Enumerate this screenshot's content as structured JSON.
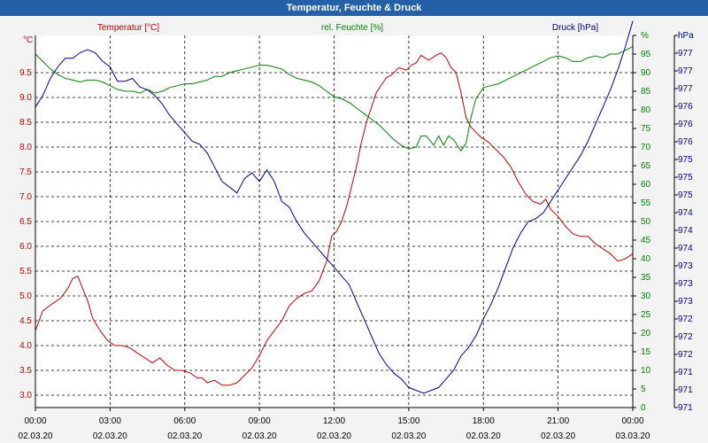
{
  "window": {
    "title": "Temperatur, Feuchte & Druck"
  },
  "chart_data": {
    "type": "line",
    "title": "Temperatur, Feuchte & Druck",
    "x": {
      "ticks": [
        "00:00",
        "03:00",
        "06:00",
        "09:00",
        "12:00",
        "15:00",
        "18:00",
        "21:00",
        "00:00"
      ],
      "dates": [
        "02.03.20",
        "02.03.20",
        "02.03.20",
        "02.03.20",
        "02.03.20",
        "02.03.20",
        "02.03.20",
        "02.03.20",
        "03.03.20"
      ],
      "range_hours": [
        0,
        24
      ]
    },
    "axes": {
      "temperature": {
        "label": "Temperatur [°C]",
        "unit": "°C",
        "range": [
          2.75,
          10.25
        ],
        "ticks": [
          "3.0",
          "3.5",
          "4.0",
          "4.5",
          "5.0",
          "5.5",
          "6.0",
          "6.5",
          "7.0",
          "7.5",
          "8.0",
          "8.5",
          "9.0",
          "9.5"
        ]
      },
      "humidity": {
        "label": "rel. Feuchte [%]",
        "unit": "%",
        "range": [
          0,
          100
        ],
        "ticks": [
          "0",
          "5",
          "10",
          "15",
          "20",
          "25",
          "30",
          "35",
          "40",
          "45",
          "50",
          "55",
          "60",
          "65",
          "70",
          "75",
          "80",
          "85",
          "90",
          "95",
          "%"
        ]
      },
      "pressure": {
        "label": "Druck [hPa]",
        "unit": "hPa",
        "range": [
          971,
          977.5
        ],
        "ticks": [
          "971",
          "971",
          "971",
          "972",
          "972",
          "972",
          "973",
          "973",
          "973",
          "974",
          "974",
          "974",
          "975",
          "975",
          "975",
          "976",
          "976",
          "976",
          "977",
          "977",
          "977",
          "hPa"
        ]
      }
    },
    "series": [
      {
        "name": "Temperatur",
        "color": "#c00000",
        "points": [
          [
            0,
            4.3
          ],
          [
            0.3,
            4.7
          ],
          [
            0.7,
            4.85
          ],
          [
            1.0,
            4.95
          ],
          [
            1.3,
            5.15
          ],
          [
            1.5,
            5.35
          ],
          [
            1.7,
            5.4
          ],
          [
            1.9,
            5.15
          ],
          [
            2.1,
            4.9
          ],
          [
            2.3,
            4.55
          ],
          [
            2.6,
            4.3
          ],
          [
            2.9,
            4.1
          ],
          [
            3.2,
            4.0
          ],
          [
            3.5,
            4.0
          ],
          [
            3.8,
            3.95
          ],
          [
            4.1,
            3.85
          ],
          [
            4.4,
            3.75
          ],
          [
            4.7,
            3.65
          ],
          [
            5.0,
            3.75
          ],
          [
            5.3,
            3.6
          ],
          [
            5.6,
            3.5
          ],
          [
            5.9,
            3.5
          ],
          [
            6.2,
            3.45
          ],
          [
            6.5,
            3.35
          ],
          [
            6.7,
            3.35
          ],
          [
            6.9,
            3.25
          ],
          [
            7.2,
            3.3
          ],
          [
            7.5,
            3.2
          ],
          [
            7.8,
            3.2
          ],
          [
            8.1,
            3.25
          ],
          [
            8.4,
            3.4
          ],
          [
            8.7,
            3.55
          ],
          [
            9.0,
            3.8
          ],
          [
            9.3,
            4.1
          ],
          [
            9.6,
            4.3
          ],
          [
            9.9,
            4.5
          ],
          [
            10.2,
            4.8
          ],
          [
            10.5,
            4.95
          ],
          [
            10.8,
            5.05
          ],
          [
            11.1,
            5.1
          ],
          [
            11.4,
            5.3
          ],
          [
            11.7,
            5.7
          ],
          [
            11.9,
            6.2
          ],
          [
            12.1,
            6.3
          ],
          [
            12.3,
            6.5
          ],
          [
            12.5,
            6.8
          ],
          [
            12.7,
            7.2
          ],
          [
            12.9,
            7.6
          ],
          [
            13.1,
            8.1
          ],
          [
            13.3,
            8.5
          ],
          [
            13.5,
            8.8
          ],
          [
            13.7,
            9.1
          ],
          [
            13.9,
            9.25
          ],
          [
            14.1,
            9.4
          ],
          [
            14.3,
            9.45
          ],
          [
            14.6,
            9.6
          ],
          [
            14.9,
            9.55
          ],
          [
            15.1,
            9.65
          ],
          [
            15.3,
            9.7
          ],
          [
            15.5,
            9.85
          ],
          [
            15.8,
            9.75
          ],
          [
            16.1,
            9.85
          ],
          [
            16.3,
            9.9
          ],
          [
            16.5,
            9.8
          ],
          [
            16.7,
            9.6
          ],
          [
            16.9,
            9.5
          ],
          [
            17.1,
            9.1
          ],
          [
            17.3,
            8.6
          ],
          [
            17.5,
            8.4
          ],
          [
            17.7,
            8.3
          ],
          [
            17.9,
            8.2
          ],
          [
            18.2,
            8.1
          ],
          [
            18.5,
            7.95
          ],
          [
            18.8,
            7.8
          ],
          [
            19.1,
            7.6
          ],
          [
            19.4,
            7.3
          ],
          [
            19.7,
            7.05
          ],
          [
            20.0,
            6.9
          ],
          [
            20.3,
            6.85
          ],
          [
            20.5,
            6.95
          ],
          [
            20.7,
            6.75
          ],
          [
            21.0,
            6.6
          ],
          [
            21.3,
            6.4
          ],
          [
            21.6,
            6.25
          ],
          [
            21.9,
            6.2
          ],
          [
            22.2,
            6.2
          ],
          [
            22.5,
            6.05
          ],
          [
            22.8,
            5.95
          ],
          [
            23.1,
            5.85
          ],
          [
            23.4,
            5.7
          ],
          [
            23.7,
            5.75
          ],
          [
            24.0,
            5.85
          ]
        ]
      },
      {
        "name": "rel. Feuchte",
        "color": "#008000",
        "points": [
          [
            0,
            95
          ],
          [
            0.3,
            93
          ],
          [
            0.6,
            91
          ],
          [
            0.9,
            89.5
          ],
          [
            1.2,
            88.5
          ],
          [
            1.5,
            88
          ],
          [
            1.8,
            87.5
          ],
          [
            2.1,
            88
          ],
          [
            2.4,
            88
          ],
          [
            2.7,
            87.5
          ],
          [
            3.0,
            86.5
          ],
          [
            3.3,
            85.5
          ],
          [
            3.6,
            85
          ],
          [
            3.9,
            85
          ],
          [
            4.2,
            84.5
          ],
          [
            4.5,
            85.5
          ],
          [
            4.8,
            84.5
          ],
          [
            5.1,
            85
          ],
          [
            5.4,
            86
          ],
          [
            5.7,
            86.5
          ],
          [
            6.0,
            87
          ],
          [
            6.3,
            87
          ],
          [
            6.6,
            87.5
          ],
          [
            6.9,
            88
          ],
          [
            7.2,
            89
          ],
          [
            7.5,
            89
          ],
          [
            7.8,
            90
          ],
          [
            8.1,
            90.5
          ],
          [
            8.4,
            91
          ],
          [
            8.7,
            91.5
          ],
          [
            9.0,
            92
          ],
          [
            9.3,
            92
          ],
          [
            9.6,
            91.5
          ],
          [
            9.9,
            91
          ],
          [
            10.2,
            89.5
          ],
          [
            10.5,
            88.5
          ],
          [
            10.8,
            88
          ],
          [
            11.1,
            87.5
          ],
          [
            11.4,
            86.5
          ],
          [
            11.7,
            85
          ],
          [
            12.0,
            83.5
          ],
          [
            12.3,
            83
          ],
          [
            12.6,
            82
          ],
          [
            12.9,
            80.5
          ],
          [
            13.2,
            79
          ],
          [
            13.5,
            77.5
          ],
          [
            13.8,
            76
          ],
          [
            14.1,
            74
          ],
          [
            14.4,
            72
          ],
          [
            14.7,
            70.5
          ],
          [
            15.0,
            69.5
          ],
          [
            15.3,
            70
          ],
          [
            15.5,
            73
          ],
          [
            15.7,
            73
          ],
          [
            16.0,
            70.5
          ],
          [
            16.2,
            73
          ],
          [
            16.4,
            70.5
          ],
          [
            16.6,
            73
          ],
          [
            16.8,
            72
          ],
          [
            17.0,
            70
          ],
          [
            17.1,
            69
          ],
          [
            17.3,
            71
          ],
          [
            17.5,
            78
          ],
          [
            17.7,
            83
          ],
          [
            18.0,
            86
          ],
          [
            18.3,
            86.5
          ],
          [
            18.6,
            87
          ],
          [
            18.9,
            88
          ],
          [
            19.2,
            89
          ],
          [
            19.5,
            90
          ],
          [
            19.8,
            91
          ],
          [
            20.1,
            92
          ],
          [
            20.4,
            93
          ],
          [
            20.7,
            94
          ],
          [
            21.0,
            94.5
          ],
          [
            21.3,
            94
          ],
          [
            21.6,
            93
          ],
          [
            21.9,
            93
          ],
          [
            22.2,
            94
          ],
          [
            22.5,
            94.5
          ],
          [
            22.8,
            94
          ],
          [
            23.1,
            95
          ],
          [
            23.4,
            95
          ],
          [
            23.7,
            96
          ],
          [
            24.0,
            97
          ]
        ]
      },
      {
        "name": "Druck",
        "color": "#00008b",
        "points": [
          [
            0,
            976.25
          ],
          [
            0.3,
            976.45
          ],
          [
            0.6,
            976.75
          ],
          [
            0.9,
            976.95
          ],
          [
            1.2,
            977.1
          ],
          [
            1.5,
            977.1
          ],
          [
            1.8,
            977.2
          ],
          [
            2.1,
            977.25
          ],
          [
            2.4,
            977.2
          ],
          [
            2.7,
            977.05
          ],
          [
            3.0,
            976.95
          ],
          [
            3.3,
            976.7
          ],
          [
            3.6,
            976.7
          ],
          [
            3.9,
            976.75
          ],
          [
            4.2,
            976.6
          ],
          [
            4.5,
            976.55
          ],
          [
            4.8,
            976.45
          ],
          [
            5.1,
            976.3
          ],
          [
            5.4,
            976.1
          ],
          [
            5.7,
            975.95
          ],
          [
            6.0,
            975.8
          ],
          [
            6.3,
            975.65
          ],
          [
            6.6,
            975.6
          ],
          [
            6.9,
            975.45
          ],
          [
            7.2,
            975.2
          ],
          [
            7.5,
            974.95
          ],
          [
            7.8,
            974.85
          ],
          [
            8.1,
            974.75
          ],
          [
            8.4,
            975.0
          ],
          [
            8.7,
            975.1
          ],
          [
            9.0,
            974.95
          ],
          [
            9.3,
            975.15
          ],
          [
            9.6,
            974.95
          ],
          [
            9.9,
            974.6
          ],
          [
            10.2,
            974.5
          ],
          [
            10.5,
            974.25
          ],
          [
            10.8,
            974.05
          ],
          [
            11.1,
            973.9
          ],
          [
            11.4,
            973.75
          ],
          [
            11.7,
            973.6
          ],
          [
            12.0,
            973.45
          ],
          [
            12.3,
            973.3
          ],
          [
            12.6,
            973.15
          ],
          [
            12.9,
            972.85
          ],
          [
            13.2,
            972.55
          ],
          [
            13.5,
            972.25
          ],
          [
            13.8,
            971.95
          ],
          [
            14.1,
            971.75
          ],
          [
            14.4,
            971.6
          ],
          [
            14.7,
            971.5
          ],
          [
            15.0,
            971.35
          ],
          [
            15.3,
            971.3
          ],
          [
            15.6,
            971.25
          ],
          [
            15.9,
            971.3
          ],
          [
            16.2,
            971.35
          ],
          [
            16.5,
            971.5
          ],
          [
            16.8,
            971.65
          ],
          [
            17.1,
            971.9
          ],
          [
            17.4,
            972.05
          ],
          [
            17.7,
            972.25
          ],
          [
            18.0,
            972.55
          ],
          [
            18.3,
            972.8
          ],
          [
            18.6,
            973.1
          ],
          [
            18.9,
            973.45
          ],
          [
            19.2,
            973.8
          ],
          [
            19.5,
            974.05
          ],
          [
            19.8,
            974.25
          ],
          [
            20.1,
            974.3
          ],
          [
            20.4,
            974.4
          ],
          [
            20.7,
            974.6
          ],
          [
            21.0,
            974.8
          ],
          [
            21.3,
            975.0
          ],
          [
            21.6,
            975.2
          ],
          [
            21.9,
            975.4
          ],
          [
            22.2,
            975.65
          ],
          [
            22.5,
            975.95
          ],
          [
            22.8,
            976.25
          ],
          [
            23.1,
            976.55
          ],
          [
            23.4,
            976.9
          ],
          [
            23.7,
            977.3
          ],
          [
            24.0,
            977.75
          ]
        ]
      }
    ]
  }
}
